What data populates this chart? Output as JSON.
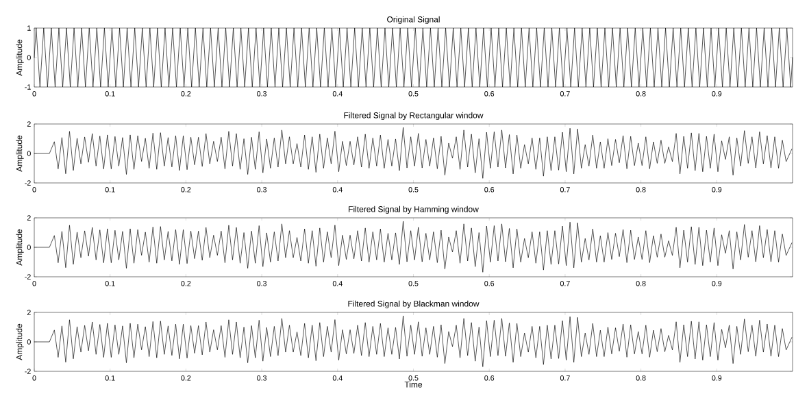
{
  "chart_data": [
    {
      "type": "line",
      "title": "Original Signal",
      "ylabel": "Amplitude",
      "xlim": [
        0,
        1
      ],
      "ylim": [
        -1,
        1
      ],
      "xticks": [
        0,
        0.1,
        0.2,
        0.3,
        0.4,
        0.5,
        0.6,
        0.7,
        0.8,
        0.9
      ],
      "yticks": [
        -1,
        0,
        1
      ],
      "x": [
        0,
        0.0025,
        0.0075,
        0.0125,
        0.0175,
        0.0225,
        0.0275,
        0.0325,
        0.0375,
        0.0425,
        0.0475,
        0.0525,
        0.0575,
        0.0625,
        0.0675,
        0.0725,
        0.0775,
        0.0825,
        0.0875,
        0.0925,
        0.0975,
        0.1025,
        0.1075,
        0.1125,
        0.1175,
        0.1225,
        0.1275,
        0.1325,
        0.1375,
        0.1425,
        0.1475,
        0.1525,
        0.1575,
        0.1625,
        0.1675,
        0.1725,
        0.1775,
        0.1825,
        0.1875,
        0.1925,
        0.1975,
        0.2025,
        0.2075,
        0.2125,
        0.2175,
        0.2225,
        0.2275,
        0.2325,
        0.2375,
        0.2425,
        0.2475,
        0.2525,
        0.2575,
        0.2625,
        0.2675,
        0.2725,
        0.2775,
        0.2825,
        0.2875,
        0.2925,
        0.2975,
        0.3025,
        0.3075,
        0.3125,
        0.3175,
        0.3225,
        0.3275,
        0.3325,
        0.3375,
        0.3425,
        0.3475,
        0.3525,
        0.3575,
        0.3625,
        0.3675,
        0.3725,
        0.3775,
        0.3825,
        0.3875,
        0.3925,
        0.3975,
        0.4025,
        0.4075,
        0.4125,
        0.4175,
        0.4225,
        0.4275,
        0.4325,
        0.4375,
        0.4425,
        0.4475,
        0.4525,
        0.4575,
        0.4625,
        0.4675,
        0.4725,
        0.4775,
        0.4825,
        0.4875,
        0.4925,
        0.4975,
        0.5025,
        0.5075,
        0.5125,
        0.5175,
        0.5225,
        0.5275,
        0.5325,
        0.5375,
        0.5425,
        0.5475,
        0.5525,
        0.5575,
        0.5625,
        0.5675,
        0.5725,
        0.5775,
        0.5825,
        0.5875,
        0.5925,
        0.5975,
        0.6025,
        0.6075,
        0.6125,
        0.6175,
        0.6225,
        0.6275,
        0.6325,
        0.6375,
        0.6425,
        0.6475,
        0.6525,
        0.6575,
        0.6625,
        0.6675,
        0.6725,
        0.6775,
        0.6825,
        0.6875,
        0.6925,
        0.6975,
        0.7025,
        0.7075,
        0.7125,
        0.7175,
        0.7225,
        0.7275,
        0.7325,
        0.7375,
        0.7425,
        0.7475,
        0.7525,
        0.7575,
        0.7625,
        0.7675,
        0.7725,
        0.7775,
        0.7825,
        0.7875,
        0.7925,
        0.7975,
        0.8025,
        0.8075,
        0.8125,
        0.8175,
        0.8225,
        0.8275,
        0.8325,
        0.8375,
        0.8425,
        0.8475,
        0.8525,
        0.8575,
        0.8625,
        0.8675,
        0.8725,
        0.8775,
        0.8825,
        0.8875,
        0.8925,
        0.8975,
        0.9025,
        0.9075,
        0.9125,
        0.9175,
        0.9225,
        0.9275,
        0.9325,
        0.9375,
        0.9425,
        0.9475,
        0.9525,
        0.9575,
        0.9625,
        0.9675,
        0.9725,
        0.9775,
        0.9825,
        0.9875,
        0.9925,
        0.9975,
        1
      ],
      "series": [
        {
          "color": "#000000",
          "values": [
            0,
            1,
            -1,
            1,
            -1,
            1,
            -1,
            1,
            -1,
            1,
            -1,
            1,
            -1,
            1,
            -1,
            1,
            -1,
            1,
            -1,
            1,
            -1,
            1,
            -1,
            1,
            -1,
            1,
            -1,
            1,
            -1,
            1,
            -1,
            1,
            -1,
            1,
            -1,
            1,
            -1,
            1,
            -1,
            1,
            -1,
            1,
            -1,
            1,
            -1,
            1,
            -1,
            1,
            -1,
            1,
            -1,
            1,
            -1,
            1,
            -1,
            1,
            -1,
            1,
            -1,
            1,
            -1,
            1,
            -1,
            1,
            -1,
            1,
            -1,
            1,
            -1,
            1,
            -1,
            1,
            -1,
            1,
            -1,
            1,
            -1,
            1,
            -1,
            1,
            -1,
            1,
            -1,
            1,
            -1,
            1,
            -1,
            1,
            -1,
            1,
            -1,
            1,
            -1,
            1,
            -1,
            1,
            -1,
            1,
            -1,
            1,
            -1,
            1,
            -1,
            1,
            -1,
            1,
            -1,
            1,
            -1,
            1,
            -1,
            1,
            -1,
            1,
            -1,
            1,
            -1,
            1,
            -1,
            1,
            -1,
            1,
            -1,
            1,
            -1,
            1,
            -1,
            1,
            -1,
            1,
            -1,
            1,
            -1,
            1,
            -1,
            1,
            -1,
            1,
            -1,
            1,
            -1,
            1,
            -1,
            1,
            -1,
            1,
            -1,
            1,
            -1,
            1,
            -1,
            1,
            -1,
            1,
            -1,
            1,
            -1,
            1,
            -1,
            1,
            -1,
            1,
            -1,
            1,
            -1,
            1,
            -1,
            1,
            -1,
            1,
            -1,
            1,
            -1,
            1,
            -1,
            1,
            -1,
            1,
            -1,
            1,
            -1,
            1,
            -1,
            1,
            -1,
            1,
            -1,
            1,
            -1,
            1,
            -1,
            1,
            -1,
            1,
            -1,
            1,
            -1,
            1,
            -1,
            1,
            -1,
            0
          ]
        }
      ]
    },
    {
      "type": "line",
      "title": "Filtered Signal by Rectangular window",
      "ylabel": "Amplitude",
      "xlim": [
        0,
        1
      ],
      "ylim": [
        -2,
        2
      ],
      "xticks": [
        0,
        0.1,
        0.2,
        0.3,
        0.4,
        0.5,
        0.6,
        0.7,
        0.8,
        0.9
      ],
      "yticks": [
        -2,
        0,
        2
      ],
      "x": [
        0,
        0.02,
        0.0265,
        0.0315,
        0.0365,
        0.0415,
        0.0465,
        0.0515,
        0.0565,
        0.0615,
        0.0665,
        0.0715,
        0.0765,
        0.0815,
        0.0865,
        0.0915,
        0.0965,
        0.1015,
        0.1065,
        0.1115,
        0.1165,
        0.1215,
        0.1265,
        0.1315,
        0.1365,
        0.1415,
        0.1465,
        0.1515,
        0.1565,
        0.1615,
        0.1665,
        0.1715,
        0.1765,
        0.1815,
        0.1865,
        0.1915,
        0.1965,
        0.2015,
        0.2065,
        0.2115,
        0.2165,
        0.2215,
        0.2265,
        0.2315,
        0.2365,
        0.2415,
        0.2465,
        0.2515,
        0.2565,
        0.2615,
        0.2665,
        0.2715,
        0.2765,
        0.2815,
        0.2865,
        0.2915,
        0.2965,
        0.3015,
        0.3065,
        0.3115,
        0.3165,
        0.3215,
        0.3265,
        0.3315,
        0.3365,
        0.3415,
        0.3465,
        0.3515,
        0.3565,
        0.3615,
        0.3665,
        0.3715,
        0.3765,
        0.3815,
        0.3865,
        0.3915,
        0.3965,
        0.4015,
        0.4065,
        0.4115,
        0.4165,
        0.4215,
        0.4265,
        0.4315,
        0.4365,
        0.4415,
        0.4465,
        0.4515,
        0.4565,
        0.4615,
        0.4665,
        0.4715,
        0.4765,
        0.4815,
        0.4865,
        0.4915,
        0.4965,
        0.5015,
        0.5065,
        0.5115,
        0.5165,
        0.5215,
        0.5265,
        0.5315,
        0.5365,
        0.5415,
        0.5465,
        0.5515,
        0.5565,
        0.5615,
        0.5665,
        0.5715,
        0.5765,
        0.5815,
        0.5865,
        0.5915,
        0.5965,
        0.6015,
        0.6065,
        0.6115,
        0.6165,
        0.6215,
        0.6265,
        0.6315,
        0.6365,
        0.6415,
        0.6465,
        0.6515,
        0.6565,
        0.6615,
        0.6665,
        0.6715,
        0.6765,
        0.6815,
        0.6865,
        0.6915,
        0.6965,
        0.7015,
        0.7065,
        0.7115,
        0.7165,
        0.7215,
        0.7265,
        0.7315,
        0.7365,
        0.7415,
        0.7465,
        0.7515,
        0.7565,
        0.7615,
        0.7665,
        0.7715,
        0.7765,
        0.7815,
        0.7865,
        0.7915,
        0.7965,
        0.8015,
        0.8065,
        0.8115,
        0.8165,
        0.8215,
        0.8265,
        0.8315,
        0.8365,
        0.8415,
        0.8465,
        0.8515,
        0.8565,
        0.8615,
        0.8665,
        0.8715,
        0.8765,
        0.8815,
        0.8865,
        0.8915,
        0.8965,
        0.9015,
        0.9065,
        0.9115,
        0.9165,
        0.9215,
        0.9265,
        0.9315,
        0.9365,
        0.9415,
        0.9465,
        0.9515,
        0.9565,
        0.9615,
        0.9665,
        0.9715,
        0.9765,
        0.9815,
        0.9865,
        0.9915,
        0.999
      ],
      "series": [
        {
          "color": "#000000",
          "values": [
            0,
            0,
            0.8,
            -1.05,
            1.08,
            -1.38,
            1.5,
            -1.15,
            1.03,
            -0.7,
            1.12,
            -0.6,
            1.35,
            -0.85,
            1.18,
            -1.05,
            1.26,
            -1.05,
            1.15,
            -0.85,
            1.08,
            -1.42,
            1.26,
            -1.08,
            1.2,
            -0.54,
            1.03,
            -1,
            1.38,
            -1.08,
            1.41,
            -0.85,
            1.08,
            -0.92,
            1.2,
            -1.15,
            1.2,
            -1.1,
            1.1,
            -0.77,
            1.1,
            -0.88,
            1.35,
            -0.7,
            0.82,
            -0.54,
            1.1,
            -1.05,
            1.5,
            -0.85,
            1.35,
            -1.08,
            1.0,
            -1.42,
            1.1,
            -1.08,
            1.47,
            -1.31,
            0.98,
            -1.0,
            1.05,
            -0.93,
            1.59,
            -0.7,
            1.13,
            -0.7,
            0.67,
            -0.93,
            1.25,
            -1.08,
            1.13,
            -1.28,
            1.31,
            -1.0,
            1.05,
            -0.7,
            1.51,
            -1.24,
            0.82,
            -0.82,
            0.82,
            -0.78,
            1.13,
            -0.93,
            1.31,
            -1.0,
            1.05,
            -0.85,
            1.25,
            -1.0,
            0.95,
            -0.85,
            0.98,
            -1.16,
            1.77,
            -0.98,
            1.13,
            -0.85,
            1.36,
            -0.98,
            0.95,
            -0.85,
            1.05,
            -1.04,
            1.16,
            -1.47,
            0.7,
            -0.32,
            1.13,
            -1.08,
            1.59,
            -0.93,
            1.31,
            -1.31,
            1.0,
            -1.69,
            1.44,
            -1.0,
            1.47,
            -0.93,
            1.59,
            -0.98,
            1.28,
            -1.39,
            1.25,
            -1.0,
            0.6,
            -0.7,
            1.05,
            -1.08,
            1.05,
            -1.54,
            1.13,
            -1.16,
            1.13,
            -1.13,
            1.44,
            -1.24,
            1.71,
            -1.39,
            1.66,
            -1.0,
            0.6,
            -0.85,
            1.25,
            -1.0,
            0.79,
            -1.0,
            1.0,
            -0.82,
            0.95,
            -0.63,
            1.21,
            -1.04,
            1.16,
            -0.82,
            0.7,
            -0.82,
            1.13,
            -1.04,
            0.79,
            -0.67,
            0.9,
            -0.67,
            0.44,
            -0.55,
            1.36,
            -1.39,
            1.16,
            -1.0,
            1.4,
            -1.16,
            1.36,
            -1.24,
            1.16,
            -1.0,
            1.31,
            -1.24,
            0.85,
            -0.4,
            1.13,
            -1.47,
            1.05,
            -0.85,
            1.55,
            -0.67,
            1.13,
            -0.98,
            1.47,
            -0.7,
            1.21,
            -0.98,
            1.13,
            -1.0,
            0.9,
            -0.55,
            0.3
          ]
        }
      ]
    },
    {
      "type": "line",
      "title": "Filtered Signal by Hamming window",
      "ylabel": "Amplitude",
      "xlim": [
        0,
        1
      ],
      "ylim": [
        -2,
        2
      ],
      "xticks": [
        0,
        0.1,
        0.2,
        0.3,
        0.4,
        0.5,
        0.6,
        0.7,
        0.8,
        0.9
      ],
      "yticks": [
        -2,
        0,
        2
      ],
      "x": [
        0,
        0.02,
        0.0265,
        0.0315,
        0.0365,
        0.0415,
        0.0465,
        0.0515,
        0.0565,
        0.0615,
        0.0665,
        0.0715,
        0.0765,
        0.0815,
        0.0865,
        0.0915,
        0.0965,
        0.1015,
        0.1065,
        0.1115,
        0.1165,
        0.1215,
        0.1265,
        0.1315,
        0.1365,
        0.1415,
        0.1465,
        0.1515,
        0.1565,
        0.1615,
        0.1665,
        0.1715,
        0.1765,
        0.1815,
        0.1865,
        0.1915,
        0.1965,
        0.2015,
        0.2065,
        0.2115,
        0.2165,
        0.2215,
        0.2265,
        0.2315,
        0.2365,
        0.2415,
        0.2465,
        0.2515,
        0.2565,
        0.2615,
        0.2665,
        0.2715,
        0.2765,
        0.2815,
        0.2865,
        0.2915,
        0.2965,
        0.3015,
        0.3065,
        0.3115,
        0.3165,
        0.3215,
        0.3265,
        0.3315,
        0.3365,
        0.3415,
        0.3465,
        0.3515,
        0.3565,
        0.3615,
        0.3665,
        0.3715,
        0.3765,
        0.3815,
        0.3865,
        0.3915,
        0.3965,
        0.4015,
        0.4065,
        0.4115,
        0.4165,
        0.4215,
        0.4265,
        0.4315,
        0.4365,
        0.4415,
        0.4465,
        0.4515,
        0.4565,
        0.4615,
        0.4665,
        0.4715,
        0.4765,
        0.4815,
        0.4865,
        0.4915,
        0.4965,
        0.5015,
        0.5065,
        0.5115,
        0.5165,
        0.5215,
        0.5265,
        0.5315,
        0.5365,
        0.5415,
        0.5465,
        0.5515,
        0.5565,
        0.5615,
        0.5665,
        0.5715,
        0.5765,
        0.5815,
        0.5865,
        0.5915,
        0.5965,
        0.6015,
        0.6065,
        0.6115,
        0.6165,
        0.6215,
        0.6265,
        0.6315,
        0.6365,
        0.6415,
        0.6465,
        0.6515,
        0.6565,
        0.6615,
        0.6665,
        0.6715,
        0.6765,
        0.6815,
        0.6865,
        0.6915,
        0.6965,
        0.7015,
        0.7065,
        0.7115,
        0.7165,
        0.7215,
        0.7265,
        0.7315,
        0.7365,
        0.7415,
        0.7465,
        0.7515,
        0.7565,
        0.7615,
        0.7665,
        0.7715,
        0.7765,
        0.7815,
        0.7865,
        0.7915,
        0.7965,
        0.8015,
        0.8065,
        0.8115,
        0.8165,
        0.8215,
        0.8265,
        0.8315,
        0.8365,
        0.8415,
        0.8465,
        0.8515,
        0.8565,
        0.8615,
        0.8665,
        0.8715,
        0.8765,
        0.8815,
        0.8865,
        0.8915,
        0.8965,
        0.9015,
        0.9065,
        0.9115,
        0.9165,
        0.9215,
        0.9265,
        0.9315,
        0.9365,
        0.9415,
        0.9465,
        0.9515,
        0.9565,
        0.9615,
        0.9665,
        0.9715,
        0.9765,
        0.9815,
        0.9865,
        0.9915,
        0.999
      ],
      "series": [
        {
          "color": "#000000",
          "values": [
            0,
            0,
            0.8,
            -1.05,
            1.08,
            -1.38,
            1.5,
            -1.15,
            1.03,
            -0.7,
            1.12,
            -0.6,
            1.35,
            -0.85,
            1.18,
            -1.05,
            1.26,
            -1.05,
            1.15,
            -0.85,
            1.08,
            -1.42,
            1.26,
            -1.08,
            1.2,
            -0.54,
            1.03,
            -1,
            1.38,
            -1.08,
            1.41,
            -0.85,
            1.08,
            -0.92,
            1.2,
            -1.15,
            1.2,
            -1.1,
            1.1,
            -0.77,
            1.1,
            -0.88,
            1.35,
            -0.7,
            0.82,
            -0.54,
            1.1,
            -1.05,
            1.5,
            -0.85,
            1.35,
            -1.08,
            1.0,
            -1.42,
            1.1,
            -1.08,
            1.47,
            -1.31,
            0.98,
            -1.0,
            1.05,
            -0.93,
            1.59,
            -0.7,
            1.13,
            -0.7,
            0.67,
            -0.93,
            1.25,
            -1.08,
            1.13,
            -1.28,
            1.31,
            -1.0,
            1.05,
            -0.7,
            1.51,
            -1.24,
            0.82,
            -0.82,
            0.82,
            -0.78,
            1.13,
            -0.93,
            1.31,
            -1.0,
            1.05,
            -0.85,
            1.25,
            -1.0,
            0.95,
            -0.85,
            0.98,
            -1.16,
            1.77,
            -0.98,
            1.13,
            -0.85,
            1.36,
            -0.98,
            0.95,
            -0.85,
            1.05,
            -1.04,
            1.16,
            -1.47,
            0.7,
            -0.32,
            1.13,
            -1.08,
            1.59,
            -0.93,
            1.31,
            -1.31,
            1.0,
            -1.69,
            1.44,
            -1.0,
            1.47,
            -0.93,
            1.59,
            -0.98,
            1.28,
            -1.39,
            1.25,
            -1.0,
            0.6,
            -0.7,
            1.05,
            -1.08,
            1.05,
            -1.54,
            1.13,
            -1.16,
            1.13,
            -1.13,
            1.44,
            -1.24,
            1.71,
            -1.39,
            1.66,
            -1.0,
            0.6,
            -0.85,
            1.25,
            -1.0,
            0.79,
            -1.0,
            1.0,
            -0.82,
            0.95,
            -0.63,
            1.21,
            -1.04,
            1.16,
            -0.82,
            0.7,
            -0.82,
            1.13,
            -1.04,
            0.79,
            -0.67,
            0.9,
            -0.67,
            0.44,
            -0.55,
            1.36,
            -1.39,
            1.16,
            -1.0,
            1.4,
            -1.16,
            1.36,
            -1.24,
            1.16,
            -1.0,
            1.31,
            -1.24,
            0.85,
            -0.4,
            1.13,
            -1.47,
            1.05,
            -0.85,
            1.55,
            -0.67,
            1.13,
            -0.98,
            1.47,
            -0.7,
            1.21,
            -0.98,
            1.13,
            -1.0,
            0.9,
            -0.55,
            0.3
          ]
        }
      ]
    },
    {
      "type": "line",
      "title": "Filtered Signal by Blackman window",
      "ylabel": "Amplitude",
      "xlabel": "Time",
      "xlim": [
        0,
        1
      ],
      "ylim": [
        -2,
        2
      ],
      "xticks": [
        0,
        0.1,
        0.2,
        0.3,
        0.4,
        0.5,
        0.6,
        0.7,
        0.8,
        0.9
      ],
      "yticks": [
        -2,
        0,
        2
      ],
      "x": [
        0,
        0.02,
        0.0265,
        0.0315,
        0.0365,
        0.0415,
        0.0465,
        0.0515,
        0.0565,
        0.0615,
        0.0665,
        0.0715,
        0.0765,
        0.0815,
        0.0865,
        0.0915,
        0.0965,
        0.1015,
        0.1065,
        0.1115,
        0.1165,
        0.1215,
        0.1265,
        0.1315,
        0.1365,
        0.1415,
        0.1465,
        0.1515,
        0.1565,
        0.1615,
        0.1665,
        0.1715,
        0.1765,
        0.1815,
        0.1865,
        0.1915,
        0.1965,
        0.2015,
        0.2065,
        0.2115,
        0.2165,
        0.2215,
        0.2265,
        0.2315,
        0.2365,
        0.2415,
        0.2465,
        0.2515,
        0.2565,
        0.2615,
        0.2665,
        0.2715,
        0.2765,
        0.2815,
        0.2865,
        0.2915,
        0.2965,
        0.3015,
        0.3065,
        0.3115,
        0.3165,
        0.3215,
        0.3265,
        0.3315,
        0.3365,
        0.3415,
        0.3465,
        0.3515,
        0.3565,
        0.3615,
        0.3665,
        0.3715,
        0.3765,
        0.3815,
        0.3865,
        0.3915,
        0.3965,
        0.4015,
        0.4065,
        0.4115,
        0.4165,
        0.4215,
        0.4265,
        0.4315,
        0.4365,
        0.4415,
        0.4465,
        0.4515,
        0.4565,
        0.4615,
        0.4665,
        0.4715,
        0.4765,
        0.4815,
        0.4865,
        0.4915,
        0.4965,
        0.5015,
        0.5065,
        0.5115,
        0.5165,
        0.5215,
        0.5265,
        0.5315,
        0.5365,
        0.5415,
        0.5465,
        0.5515,
        0.5565,
        0.5615,
        0.5665,
        0.5715,
        0.5765,
        0.5815,
        0.5865,
        0.5915,
        0.5965,
        0.6015,
        0.6065,
        0.6115,
        0.6165,
        0.6215,
        0.6265,
        0.6315,
        0.6365,
        0.6415,
        0.6465,
        0.6515,
        0.6565,
        0.6615,
        0.6665,
        0.6715,
        0.6765,
        0.6815,
        0.6865,
        0.6915,
        0.6965,
        0.7015,
        0.7065,
        0.7115,
        0.7165,
        0.7215,
        0.7265,
        0.7315,
        0.7365,
        0.7415,
        0.7465,
        0.7515,
        0.7565,
        0.7615,
        0.7665,
        0.7715,
        0.7765,
        0.7815,
        0.7865,
        0.7915,
        0.7965,
        0.8015,
        0.8065,
        0.8115,
        0.8165,
        0.8215,
        0.8265,
        0.8315,
        0.8365,
        0.8415,
        0.8465,
        0.8515,
        0.8565,
        0.8615,
        0.8665,
        0.8715,
        0.8765,
        0.8815,
        0.8865,
        0.8915,
        0.8965,
        0.9015,
        0.9065,
        0.9115,
        0.9165,
        0.9215,
        0.9265,
        0.9315,
        0.9365,
        0.9415,
        0.9465,
        0.9515,
        0.9565,
        0.9615,
        0.9665,
        0.9715,
        0.9765,
        0.9815,
        0.9865,
        0.9915,
        0.999
      ],
      "series": [
        {
          "color": "#000000",
          "values": [
            0,
            0,
            0.8,
            -1.05,
            1.08,
            -1.38,
            1.5,
            -1.15,
            1.03,
            -0.7,
            1.12,
            -0.6,
            1.35,
            -0.85,
            1.18,
            -1.05,
            1.26,
            -1.05,
            1.15,
            -0.85,
            1.08,
            -1.42,
            1.26,
            -1.08,
            1.2,
            -0.54,
            1.03,
            -1,
            1.38,
            -1.08,
            1.41,
            -0.85,
            1.08,
            -0.92,
            1.2,
            -1.15,
            1.2,
            -1.1,
            1.1,
            -0.77,
            1.1,
            -0.88,
            1.35,
            -0.7,
            0.82,
            -0.54,
            1.1,
            -1.05,
            1.5,
            -0.85,
            1.35,
            -1.08,
            1.0,
            -1.42,
            1.1,
            -1.08,
            1.47,
            -1.31,
            0.98,
            -1.0,
            1.05,
            -0.93,
            1.59,
            -0.7,
            1.13,
            -0.7,
            0.67,
            -0.93,
            1.25,
            -1.08,
            1.13,
            -1.28,
            1.31,
            -1.0,
            1.05,
            -0.7,
            1.51,
            -1.24,
            0.82,
            -0.82,
            0.82,
            -0.78,
            1.13,
            -0.93,
            1.31,
            -1.0,
            1.05,
            -0.85,
            1.25,
            -1.0,
            0.95,
            -0.85,
            0.98,
            -1.16,
            1.77,
            -0.98,
            1.13,
            -0.85,
            1.36,
            -0.98,
            0.95,
            -0.85,
            1.05,
            -1.04,
            1.16,
            -1.47,
            0.7,
            -0.32,
            1.13,
            -1.08,
            1.59,
            -0.93,
            1.31,
            -1.31,
            1.0,
            -1.69,
            1.44,
            -1.0,
            1.47,
            -0.93,
            1.59,
            -0.98,
            1.28,
            -1.39,
            1.25,
            -1.0,
            0.6,
            -0.7,
            1.05,
            -1.08,
            1.05,
            -1.54,
            1.13,
            -1.16,
            1.13,
            -1.13,
            1.44,
            -1.24,
            1.71,
            -1.39,
            1.66,
            -1.0,
            0.6,
            -0.85,
            1.25,
            -1.0,
            0.79,
            -1.0,
            1.0,
            -0.82,
            0.95,
            -0.63,
            1.21,
            -1.04,
            1.16,
            -0.82,
            0.7,
            -0.82,
            1.13,
            -1.04,
            0.79,
            -0.67,
            0.9,
            -0.67,
            0.44,
            -0.55,
            1.36,
            -1.39,
            1.16,
            -1.0,
            1.4,
            -1.16,
            1.36,
            -1.24,
            1.16,
            -1.0,
            1.31,
            -1.24,
            0.85,
            -0.4,
            1.13,
            -1.47,
            1.05,
            -0.85,
            1.55,
            -0.67,
            1.13,
            -0.98,
            1.47,
            -0.7,
            1.21,
            -0.98,
            1.13,
            -1.0,
            0.9,
            -0.55,
            0.3
          ]
        }
      ]
    }
  ]
}
